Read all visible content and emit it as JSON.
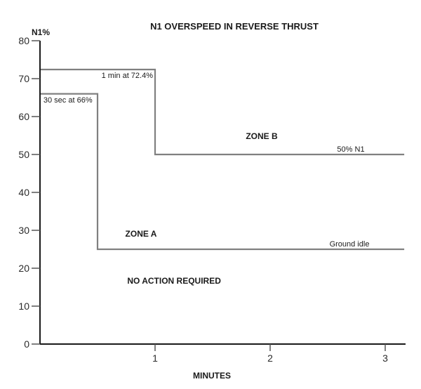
{
  "chart_data": {
    "type": "line",
    "subtype": "step",
    "title": "N1 OVERSPEED IN REVERSE THRUST",
    "xlabel": "MINUTES",
    "ylabel": "N1%",
    "xlim": [
      0,
      3.18
    ],
    "ylim": [
      0,
      80
    ],
    "x_ticks": [
      1,
      2,
      3
    ],
    "y_ticks": [
      0,
      10,
      20,
      30,
      40,
      50,
      60,
      70,
      80
    ],
    "grid": false,
    "legend": "none",
    "background_color": "#ffffff",
    "line_color": "#808080",
    "axis_color": "#1a1a1a",
    "tick_color": "#555555",
    "series": [
      {
        "name": "overspeed-upper-limit",
        "description": "1 min at 72.4% then 50% N1",
        "points": [
          [
            0,
            72.4
          ],
          [
            1,
            72.4
          ],
          [
            1,
            50
          ],
          [
            3.165,
            50
          ]
        ]
      },
      {
        "name": "overspeed-lower-limit",
        "description": "30 sec at 66% then ground idle 25%",
        "points": [
          [
            0,
            66
          ],
          [
            0.5,
            66
          ],
          [
            0.5,
            25
          ],
          [
            3.165,
            25
          ]
        ]
      }
    ],
    "annotations": [
      {
        "name": "limit-label-1min",
        "text": "1 min at 72.4%",
        "x": 0.982,
        "y": 70.2,
        "anchor": "end",
        "bold": false
      },
      {
        "name": "limit-label-30sec",
        "text": "30 sec at 66%",
        "x": 0.03,
        "y": 63.7,
        "anchor": "start",
        "bold": false
      },
      {
        "name": "zone-b-label",
        "text": "ZONE B",
        "x": 1.927,
        "y": 54.1,
        "anchor": "middle",
        "bold": true
      },
      {
        "name": "fifty-pct-n1-label",
        "text": "50% N1",
        "x": 2.701,
        "y": 50.7,
        "anchor": "middle",
        "bold": false
      },
      {
        "name": "zone-a-label",
        "text": "ZONE A",
        "x": 0.878,
        "y": 28.3,
        "anchor": "middle",
        "bold": true
      },
      {
        "name": "ground-idle-label",
        "text": "Ground idle",
        "x": 2.689,
        "y": 25.7,
        "anchor": "middle",
        "bold": false
      },
      {
        "name": "no-action-label",
        "text": "NO ACTION REQUIRED",
        "x": 1.165,
        "y": 15.9,
        "anchor": "middle",
        "bold": true
      }
    ]
  }
}
